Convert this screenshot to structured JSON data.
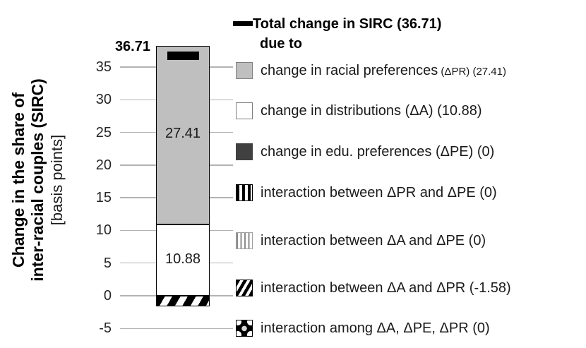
{
  "chart_data": {
    "type": "bar",
    "subtype": "single-stacked-column-decomposition",
    "title": "",
    "xlabel": "",
    "ylabel_lines": [
      "Change in the share of",
      "inter-racial couples (SIRC)",
      "[basis points]"
    ],
    "yticks": [
      35,
      30,
      25,
      20,
      15,
      10,
      5,
      0,
      -5
    ],
    "ylim": [
      -7.5,
      40
    ],
    "grid": true,
    "legend_position": "right",
    "total": {
      "label": "Total change in SIRC",
      "value": 36.71,
      "display": "36.71"
    },
    "segments": [
      {
        "name": "change in racial preferences (ΔPR)",
        "value": 27.41,
        "label": "27.41",
        "pattern": "gray"
      },
      {
        "name": "change in distributions (ΔA)",
        "value": 10.88,
        "label": "10.88",
        "pattern": "white"
      },
      {
        "name": "change in edu. preferences (ΔPE)",
        "value": 0,
        "label": "",
        "pattern": "darkgray"
      },
      {
        "name": "interaction between ΔPR and ΔPE",
        "value": 0,
        "label": "",
        "pattern": "vstripe-bold"
      },
      {
        "name": "interaction between ΔA and ΔPE",
        "value": 0,
        "label": "",
        "pattern": "vstripe-thin"
      },
      {
        "name": "interaction between ΔA and ΔPR",
        "value": -1.58,
        "label": "",
        "pattern": "diag"
      },
      {
        "name": "interaction among ΔA, ΔPE, ΔPR",
        "value": 0,
        "label": "",
        "pattern": "dots"
      }
    ],
    "legend": {
      "header_line1": "Total change in SIRC (36.71)",
      "header_line2": "due to",
      "entries": [
        {
          "swatch": "gray",
          "text": "change in racial preferences",
          "suffix": " (ΔPR) (27.41)"
        },
        {
          "swatch": "white",
          "text": "change in distributions (ΔA) (10.88)",
          "suffix": ""
        },
        {
          "swatch": "darkgray",
          "text": "change in edu. preferences (ΔPE) (0)",
          "suffix": ""
        },
        {
          "swatch": "vstripe-bold",
          "text": "interaction between ΔPR and ΔPE (0)",
          "suffix": ""
        },
        {
          "swatch": "vstripe-thin",
          "text": "interaction between ΔA and ΔPE (0)",
          "suffix": ""
        },
        {
          "swatch": "diag",
          "text": "interaction between ΔA and ΔPR (-1.58)",
          "suffix": ""
        },
        {
          "swatch": "dots",
          "text": "interaction among ΔA, ΔPE, ΔPR (0)",
          "suffix": ""
        }
      ]
    },
    "colors": {
      "bar_gray": "#bfbfbf",
      "dark_gray": "#404040",
      "gridline": "#b3b3b3",
      "text": "#1a1a1a",
      "marker": "#000000"
    }
  }
}
